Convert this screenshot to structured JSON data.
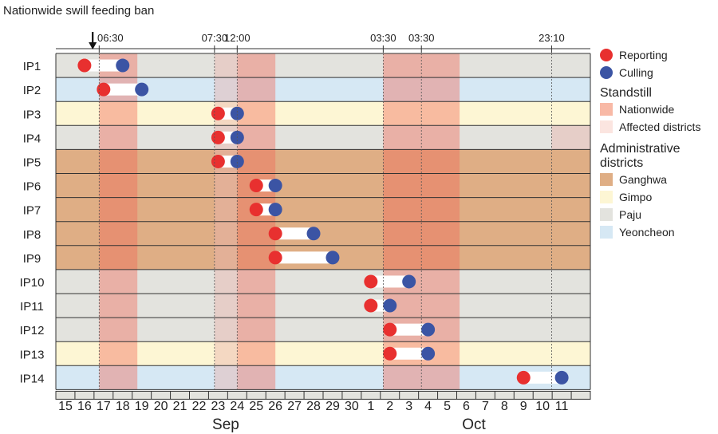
{
  "chart_data": {
    "type": "timeline",
    "annotation": "Nationwide swill feeding ban",
    "month_labels": [
      "Sep",
      "Oct"
    ],
    "day_labels": [
      "15",
      "16",
      "17",
      "18",
      "19",
      "20",
      "21",
      "22",
      "23",
      "24",
      "25",
      "26",
      "27",
      "28",
      "29",
      "30",
      "1",
      "2",
      "3",
      "4",
      "5",
      "6",
      "7",
      "8",
      "9",
      "10",
      "11"
    ],
    "time_markers": [
      {
        "label": "06:30",
        "day": 17.27
      },
      {
        "label": "07:30",
        "day": 23.31
      },
      {
        "label": "12:00",
        "day": 24.5
      },
      {
        "label": "03:30",
        "day": 32.15
      },
      {
        "label": "03:30",
        "day": 34.15
      },
      {
        "label": "23:10",
        "day": 40.97
      }
    ],
    "ban_day": 16.93,
    "rows": [
      {
        "label": "IP1",
        "district": "Paju",
        "reporting": 16.5,
        "culling": 18.5
      },
      {
        "label": "IP2",
        "district": "Yeoncheon",
        "reporting": 17.5,
        "culling": 19.5
      },
      {
        "label": "IP3",
        "district": "Gimpo",
        "reporting": 23.5,
        "culling": 24.5
      },
      {
        "label": "IP4",
        "district": "Paju",
        "reporting": 23.5,
        "culling": 24.5
      },
      {
        "label": "IP5",
        "district": "Ganghwa",
        "reporting": 23.5,
        "culling": 24.5
      },
      {
        "label": "IP6",
        "district": "Ganghwa",
        "reporting": 25.5,
        "culling": 26.5
      },
      {
        "label": "IP7",
        "district": "Ganghwa",
        "reporting": 25.5,
        "culling": 26.5
      },
      {
        "label": "IP8",
        "district": "Ganghwa",
        "reporting": 26.5,
        "culling": 28.5
      },
      {
        "label": "IP9",
        "district": "Ganghwa",
        "reporting": 26.5,
        "culling": 29.5
      },
      {
        "label": "IP10",
        "district": "Paju",
        "reporting": 31.5,
        "culling": 33.5
      },
      {
        "label": "IP11",
        "district": "Paju",
        "reporting": 31.5,
        "culling": 32.5
      },
      {
        "label": "IP12",
        "district": "Paju",
        "reporting": 32.5,
        "culling": 34.5
      },
      {
        "label": "IP13",
        "district": "Gimpo",
        "reporting": 32.5,
        "culling": 34.5
      },
      {
        "label": "IP14",
        "district": "Yeoncheon",
        "reporting": 39.5,
        "culling": 41.5
      }
    ],
    "standstill_nationwide": [
      {
        "start": 17.27,
        "end": 19.27
      },
      {
        "start": 24.5,
        "end": 26.5
      },
      {
        "start": 32.15,
        "end": 36.15
      }
    ],
    "standstill_affected": [
      {
        "start": 23.31,
        "end": 24.5,
        "rows": [
          "IP1",
          "IP2",
          "IP3",
          "IP4",
          "IP5",
          "IP6",
          "IP7",
          "IP8",
          "IP9",
          "IP10",
          "IP11",
          "IP12",
          "IP13",
          "IP14"
        ]
      },
      {
        "start": 40.97,
        "end": 43.0,
        "rows": [
          "IP4"
        ]
      }
    ]
  },
  "legend": {
    "reporting": "Reporting",
    "culling": "Culling",
    "standstill_title": "Standstill",
    "nationwide": "Nationwide",
    "affected": "Affected districts",
    "admin_title": "Administrative districts",
    "districts": [
      "Ganghwa",
      "Gimpo",
      "Paju",
      "Yeoncheon"
    ]
  },
  "colors": {
    "Ganghwa": "#dfae85",
    "Gimpo": "#fdf6d4",
    "Paju": "#e3e3de",
    "Yeoncheon": "#d6e8f4",
    "reporting": "#e8302f",
    "culling": "#3b54a4",
    "nationwide": "#f06a57",
    "affected": "#e9b3ae",
    "lg_nationwide": "#f8b9a6",
    "lg_affected": "#fbe5e0"
  }
}
